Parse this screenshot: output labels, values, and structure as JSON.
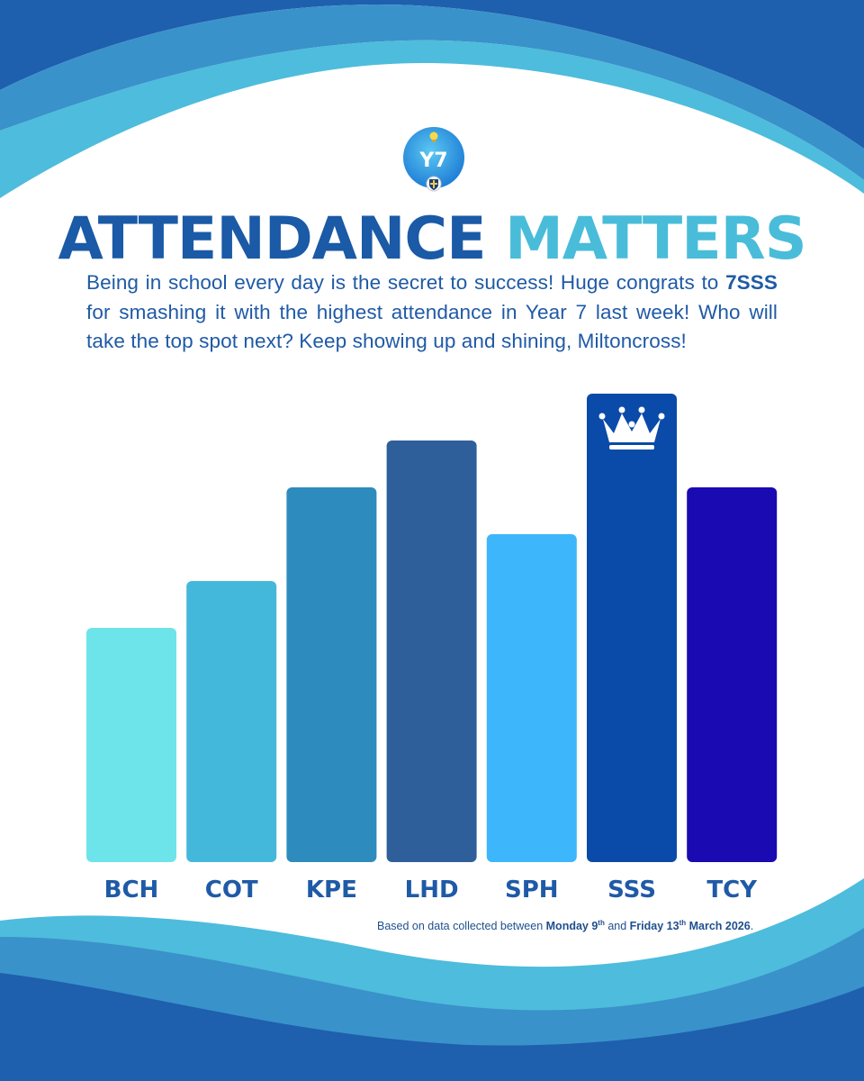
{
  "header": {
    "badge_text": "Y7",
    "title_word1": "ATTENDANCE",
    "title_word2": "MATTERS"
  },
  "intro": {
    "text1": "Being in school every day is the secret to success! Huge congrats to ",
    "highlight": "7SSS",
    "text2": " for smashing it with the highest attendance in Year 7 last week! Who will take the top spot next? Keep showing up and shining, Miltoncross!"
  },
  "chart_data": {
    "type": "bar",
    "title": "ATTENDANCE MATTERS",
    "xlabel": "",
    "ylabel": "",
    "ylim": [
      0,
      10
    ],
    "categories": [
      "BCH",
      "COT",
      "KPE",
      "LHD",
      "SPH",
      "SSS",
      "TCY"
    ],
    "values": [
      5,
      6,
      8,
      9,
      7,
      10,
      8
    ],
    "colors": [
      "#6de4e9",
      "#44b8da",
      "#2d8cbd",
      "#2e5f9a",
      "#3db6fc",
      "#0a4aa9",
      "#1a0ab2"
    ],
    "winner": "SSS",
    "winner_icon": "crown-icon"
  },
  "footnote": {
    "prefix": "Based on data collected between ",
    "date1": "Monday 9",
    "date1_sup": "th",
    "mid": " and ",
    "date2": "Friday 13",
    "date2_sup": "th",
    "date2_end": "March 2026",
    "end": "."
  },
  "colors": {
    "title_dark": "#1a5aa6",
    "title_light": "#49bcd9",
    "text": "#1f5aa6",
    "wave_dark": "#1e5fae",
    "wave_mid": "#3a92ca",
    "wave_light": "#4ebcdc"
  }
}
